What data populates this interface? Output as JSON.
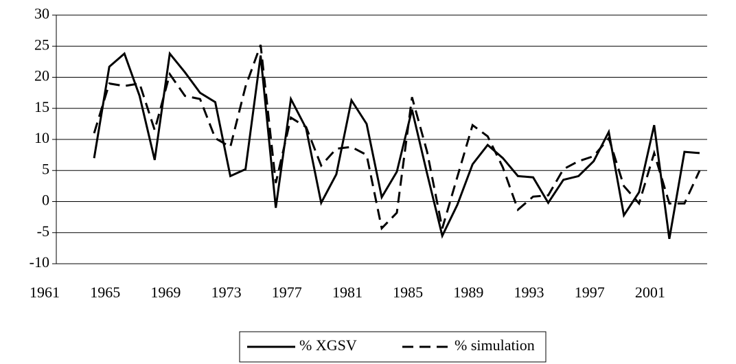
{
  "chart_data": {
    "type": "line",
    "categories": [
      "1961",
      null,
      null,
      null,
      "1965",
      null,
      null,
      null,
      "1969",
      null,
      null,
      null,
      "1973",
      null,
      null,
      null,
      "1977",
      null,
      null,
      null,
      "1981",
      null,
      null,
      null,
      "1985",
      null,
      null,
      null,
      "1989",
      null,
      null,
      null,
      "1993",
      null,
      null,
      null,
      "1997",
      null,
      null,
      null,
      "2001",
      null,
      null
    ],
    "series": [
      {
        "name": "% XGSV",
        "color": "#000000",
        "dash": false,
        "values": [
          null,
          null,
          7,
          21.7,
          23.8,
          17,
          6.7,
          23.8,
          20.8,
          17.5,
          16,
          4.1,
          5.2,
          23.5,
          -1,
          16.5,
          11.8,
          -0.2,
          4.4,
          16.3,
          12.5,
          0.7,
          4.8,
          14.8,
          4.5,
          -5.5,
          -0.5,
          6,
          9.1,
          7,
          4.1,
          3.9,
          -0.2,
          3.5,
          4.1,
          6.5,
          11.2,
          -2.2,
          1.5,
          12.3,
          -6,
          8,
          7.8
        ]
      },
      {
        "name": "% simulation",
        "color": "#000000",
        "dash": true,
        "values": [
          null,
          null,
          11,
          19,
          18.6,
          19,
          11.5,
          20.5,
          17,
          16.5,
          10.2,
          8.8,
          18.5,
          25.2,
          3,
          13.5,
          12,
          5.8,
          8.5,
          8.8,
          7.5,
          -4.3,
          -1.8,
          16.8,
          8,
          -4.3,
          4,
          12.3,
          10.5,
          5.5,
          -1.3,
          0.8,
          1,
          5.2,
          6.5,
          7.3,
          10.2,
          2.5,
          -0.3,
          7.8,
          -0.3,
          -0.3,
          5
        ]
      }
    ],
    "ylim": [
      -10,
      30
    ],
    "yticks": [
      -10,
      -5,
      0,
      5,
      10,
      15,
      20,
      25,
      30
    ],
    "grid": true,
    "legend": "bottom"
  }
}
